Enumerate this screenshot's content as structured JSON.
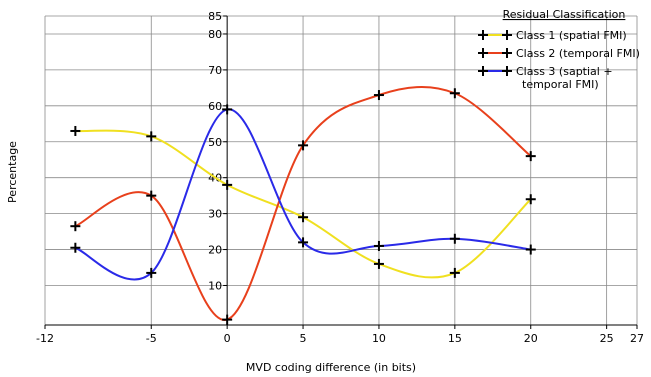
{
  "chart_data": {
    "type": "line",
    "xlabel": "MVD coding difference (in bits)",
    "ylabel": "Percentage",
    "xlim": [
      -12,
      27
    ],
    "ylim": [
      -1,
      85
    ],
    "xticks": [
      -12,
      -5,
      0,
      5,
      10,
      15,
      20,
      25,
      27
    ],
    "yticks": [
      10,
      20,
      30,
      40,
      50,
      60,
      70,
      80,
      85
    ],
    "grid": true,
    "x": [
      -10,
      -5,
      0,
      5,
      10,
      15,
      20
    ],
    "legend": {
      "title": "Residual Classification",
      "placement": "top-right"
    },
    "series": [
      {
        "name": "Class 1 (spatial FMI)",
        "color": "#f0e020",
        "values": [
          53,
          51.5,
          38,
          29,
          16,
          13.5,
          34
        ]
      },
      {
        "name": "Class 2 (temporal FMI)",
        "color": "#e8401c",
        "values": [
          26.5,
          35,
          0.5,
          49,
          63,
          63.5,
          46
        ]
      },
      {
        "name": "Class 3 (saptial + temporal FMI)",
        "name_lines": [
          "Class 3 (saptial +",
          "temporal FMI)"
        ],
        "color": "#2a2ae8",
        "values": [
          20.5,
          13.5,
          59,
          22,
          21,
          23,
          20
        ]
      }
    ]
  }
}
